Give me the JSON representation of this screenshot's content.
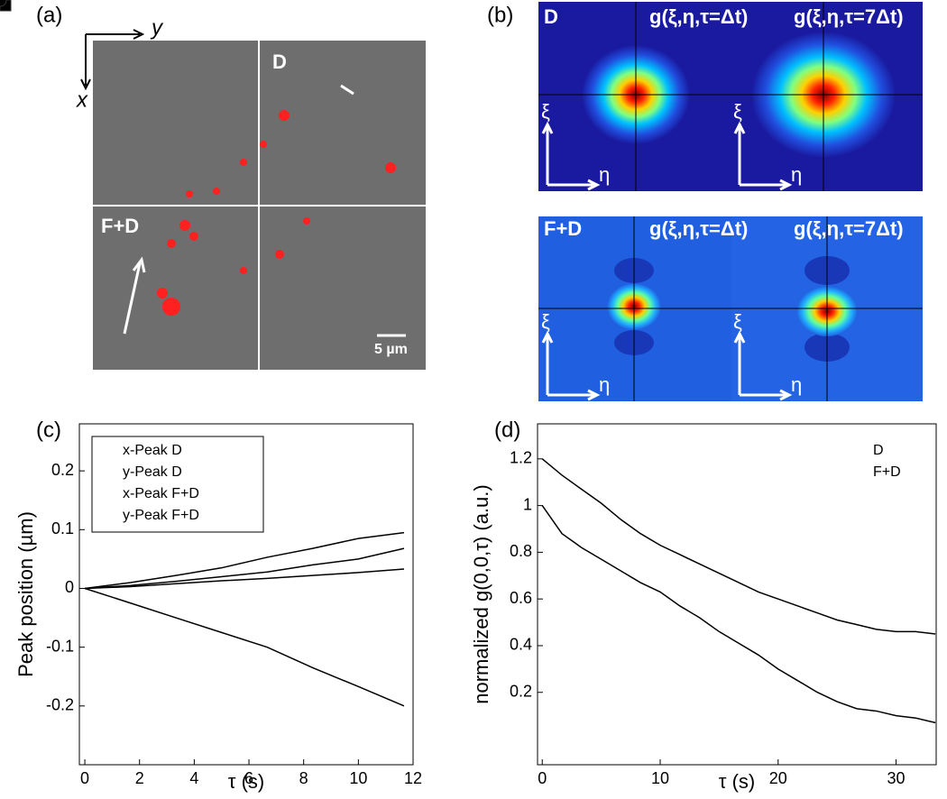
{
  "panel_a": {
    "label": "(a)",
    "axis_y": "y",
    "axis_x": "x",
    "region_d": "D",
    "region_fd": "F+D",
    "scale_bar": "5 µm"
  },
  "panel_b": {
    "label": "(b)",
    "row_d": "D",
    "row_fd": "F+D",
    "title_1": "g(ξ,η,τ=Δt)",
    "title_7": "g(ξ,η,τ=7Δt)",
    "xi": "ξ",
    "eta": "η"
  },
  "chart_data": [
    {
      "type": "scatter",
      "label": "(c)",
      "xlabel": "τ (s)",
      "ylabel": "Peak position (µm)",
      "xlim": [
        -0.2,
        12
      ],
      "ylim": [
        -0.3,
        0.28
      ],
      "xticks": [
        0,
        2,
        4,
        6,
        8,
        10,
        12
      ],
      "yticks": [
        -0.2,
        -0.1,
        0,
        0.1,
        0.2
      ],
      "legend": "upper left",
      "fit": true,
      "x": [
        0,
        1.67,
        3.33,
        5,
        6.67,
        8.33,
        10,
        11.67
      ],
      "series": [
        {
          "name": "x-Peak D",
          "color": "#999999",
          "marker": "diamond",
          "values": [
            0,
            0.003,
            0.008,
            0.013,
            0.017,
            0.022,
            0.027,
            0.033
          ]
        },
        {
          "name": "y-Peak D",
          "color": "#999999",
          "marker": "square",
          "values": [
            0,
            0.005,
            0.012,
            0.02,
            0.028,
            0.04,
            0.05,
            0.068
          ]
        },
        {
          "name": "x-Peak F+D",
          "color": "#111111",
          "marker": "diamond",
          "values": [
            0,
            -0.025,
            -0.05,
            -0.075,
            -0.1,
            -0.135,
            -0.167,
            -0.2
          ]
        },
        {
          "name": "y-Peak F+D",
          "color": "#111111",
          "marker": "square",
          "values": [
            0,
            0.01,
            0.022,
            0.035,
            0.053,
            0.068,
            0.085,
            0.095
          ]
        }
      ]
    },
    {
      "type": "scatter",
      "label": "(d)",
      "xlabel": "τ (s)",
      "ylabel": "normalized g(0,0,τ) (a.u.)",
      "xlim": [
        -0.4,
        33.4
      ],
      "ylim": [
        -0.11,
        1.35
      ],
      "xticks": [
        0,
        10,
        20,
        30
      ],
      "yticks": [
        0.2,
        0.4,
        0.6,
        0.8,
        1,
        1.2
      ],
      "legend": "upper right",
      "fit": true,
      "x": [
        0,
        1.67,
        3.33,
        5,
        6.67,
        8.33,
        10,
        11.67,
        13.33,
        15,
        16.67,
        18.33,
        20,
        21.67,
        23.33,
        25,
        26.67,
        28.33,
        30,
        31.67,
        33.33
      ],
      "series": [
        {
          "name": "D",
          "color": "#999999",
          "marker": "circle",
          "values": [
            1.0,
            0.88,
            0.82,
            0.77,
            0.72,
            0.67,
            0.63,
            0.57,
            0.52,
            0.46,
            0.41,
            0.36,
            0.3,
            0.25,
            0.2,
            0.16,
            0.13,
            0.12,
            0.1,
            0.09,
            0.07
          ]
        },
        {
          "name": "F+D",
          "color": "#111111",
          "marker": "circle",
          "values": [
            1.2,
            1.13,
            1.07,
            1.01,
            0.94,
            0.88,
            0.83,
            0.79,
            0.75,
            0.71,
            0.67,
            0.63,
            0.6,
            0.57,
            0.54,
            0.51,
            0.49,
            0.47,
            0.46,
            0.46,
            0.45
          ]
        }
      ]
    }
  ]
}
